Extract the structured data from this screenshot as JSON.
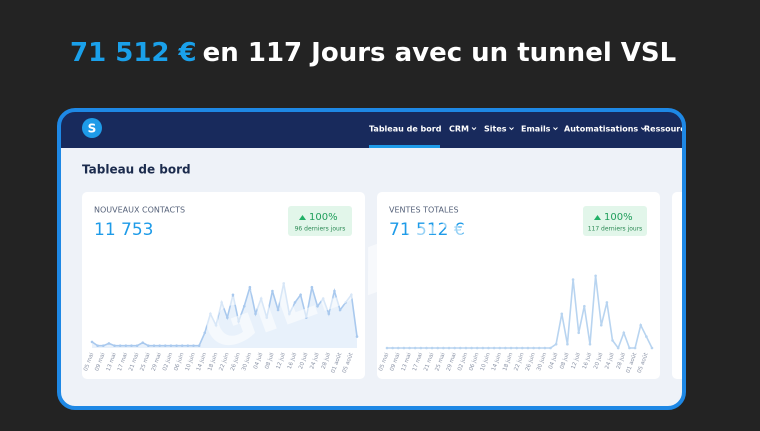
{
  "headline": {
    "highlight": "71 512 €",
    "rest": "en 117 Jours avec un tunnel  VSL"
  },
  "nav": {
    "items": [
      "Tableau de bord",
      "CRM",
      "Sites",
      "Emails",
      "Automatisations",
      "Ressource"
    ]
  },
  "page_title": "Tableau de bord",
  "watermark": "GILDASW",
  "cards": [
    {
      "label": "NOUVEAUX CONTACTS",
      "value": "11 753",
      "badge": "100%",
      "badge_sub": "96 derniers jours",
      "chart_data": {
        "type": "line",
        "color": "#a9c9ee",
        "area": true,
        "ylim": [
          0,
          100
        ],
        "categories": [
          "05 mai",
          null,
          "09 mai",
          null,
          "13 mai",
          null,
          "17 mai",
          null,
          "21 mai",
          null,
          "25 mai",
          null,
          "29 mai",
          null,
          "02 juin",
          null,
          "06 juin",
          null,
          "10 juin",
          null,
          "14 juin",
          null,
          "18 juin",
          null,
          "22 juin",
          null,
          "26 juin",
          null,
          "30 juin",
          null,
          "04 juil",
          null,
          "08 juil",
          null,
          "12 juil",
          null,
          "16 juil",
          null,
          "20 juil",
          null,
          "24 juil",
          null,
          "28 juil",
          null,
          "01 août",
          null,
          "05 août",
          null
        ],
        "values": [
          8,
          3,
          3,
          6,
          3,
          3,
          3,
          3,
          3,
          7,
          3,
          3,
          3,
          3,
          3,
          3,
          3,
          3,
          3,
          3,
          20,
          45,
          30,
          60,
          40,
          70,
          35,
          55,
          80,
          45,
          65,
          40,
          75,
          50,
          85,
          45,
          60,
          70,
          40,
          80,
          55,
          65,
          45,
          75,
          50,
          60,
          70,
          15
        ]
      }
    },
    {
      "label": "VENTES TOTALES",
      "value": "71 512 €",
      "badge": "100%",
      "badge_sub": "117 derniers jours",
      "chart_data": {
        "type": "line",
        "color": "#b8d4f0",
        "area": false,
        "ylim": [
          0,
          100
        ],
        "categories": [
          "05 mai",
          null,
          "09 mai",
          null,
          "13 mai",
          null,
          "17 mai",
          null,
          "21 mai",
          null,
          "25 mai",
          null,
          "29 mai",
          null,
          "02 juin",
          null,
          "06 juin",
          null,
          "10 juin",
          null,
          "14 juin",
          null,
          "18 juin",
          null,
          "22 juin",
          null,
          "26 juin",
          null,
          "30 juin",
          null,
          "04 juil",
          null,
          "08 juil",
          null,
          "12 juil",
          null,
          "16 juil",
          null,
          "20 juil",
          null,
          "24 juil",
          null,
          "28 juil",
          null,
          "01 août",
          null,
          "05 août",
          null
        ],
        "values": [
          0,
          0,
          0,
          0,
          0,
          0,
          0,
          0,
          0,
          0,
          0,
          0,
          0,
          0,
          0,
          0,
          0,
          0,
          0,
          0,
          0,
          0,
          0,
          0,
          0,
          0,
          0,
          0,
          0,
          0,
          5,
          45,
          5,
          90,
          20,
          55,
          5,
          95,
          30,
          60,
          10,
          0,
          20,
          0,
          0,
          30,
          15,
          0
        ]
      }
    }
  ]
}
